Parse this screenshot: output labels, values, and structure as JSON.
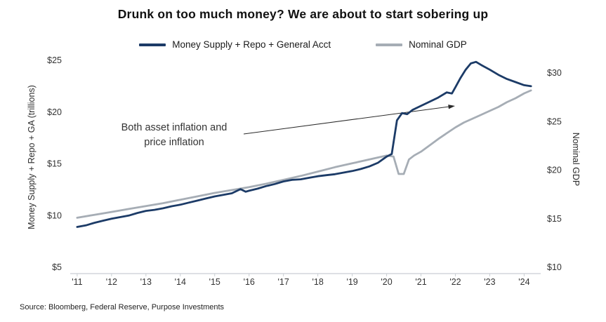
{
  "chart_data": {
    "type": "line",
    "title": "Drunk on too much money? We are about to start sobering up",
    "source": "Source: Bloomberg, Federal Reserve, Purpose Investments",
    "annotation": "Both asset inflation and price inflation",
    "legend_position": "top-center",
    "grid": false,
    "x_axis": {
      "tick_values": [
        2011,
        2012,
        2013,
        2014,
        2015,
        2016,
        2017,
        2018,
        2019,
        2020,
        2021,
        2022,
        2023,
        2024
      ],
      "tick_labels": [
        "'11",
        "'12",
        "'13",
        "'14",
        "'15",
        "'16",
        "'17",
        "'18",
        "'19",
        "'20",
        "'21",
        "'22",
        "'23",
        "'24"
      ],
      "range": [
        2010.9,
        2024.4
      ]
    },
    "left_axis": {
      "label": "Money Supply + Repo + GA (trillions)",
      "tick_values": [
        5,
        10,
        15,
        20,
        25
      ],
      "tick_labels": [
        "$5",
        "$10",
        "$15",
        "$20",
        "$25"
      ],
      "range": [
        5,
        25
      ]
    },
    "right_axis": {
      "label": "Nominal GDP",
      "tick_values": [
        10,
        15,
        20,
        25,
        30
      ],
      "tick_labels": [
        "$10",
        "$15",
        "$20",
        "$25",
        "$30"
      ],
      "range": [
        10,
        30
      ]
    },
    "series": [
      {
        "id": "money-supply",
        "name": "Money Supply + Repo + General Acct",
        "axis": "left",
        "color": "#1c3b67",
        "stroke_width": 2.8,
        "x": [
          2011.0,
          2011.25,
          2011.5,
          2011.75,
          2012.0,
          2012.25,
          2012.5,
          2012.75,
          2013.0,
          2013.25,
          2013.5,
          2013.75,
          2014.0,
          2014.25,
          2014.5,
          2014.75,
          2015.0,
          2015.25,
          2015.5,
          2015.75,
          2015.9,
          2016.0,
          2016.25,
          2016.5,
          2016.75,
          2017.0,
          2017.25,
          2017.5,
          2017.75,
          2018.0,
          2018.25,
          2018.5,
          2018.75,
          2019.0,
          2019.25,
          2019.5,
          2019.75,
          2020.0,
          2020.15,
          2020.3,
          2020.45,
          2020.6,
          2020.75,
          2021.0,
          2021.25,
          2021.5,
          2021.75,
          2021.9,
          2022.0,
          2022.15,
          2022.3,
          2022.45,
          2022.6,
          2022.75,
          2023.0,
          2023.25,
          2023.5,
          2023.75,
          2024.0,
          2024.2
        ],
        "y": [
          8.9,
          9.05,
          9.3,
          9.5,
          9.7,
          9.85,
          10.0,
          10.25,
          10.45,
          10.55,
          10.7,
          10.9,
          11.05,
          11.25,
          11.45,
          11.65,
          11.85,
          12.0,
          12.15,
          12.55,
          12.3,
          12.4,
          12.6,
          12.85,
          13.05,
          13.3,
          13.45,
          13.5,
          13.65,
          13.8,
          13.9,
          14.0,
          14.15,
          14.3,
          14.5,
          14.75,
          15.1,
          15.7,
          15.95,
          19.2,
          19.9,
          19.8,
          20.2,
          20.6,
          21.0,
          21.4,
          21.9,
          21.8,
          22.4,
          23.3,
          24.1,
          24.7,
          24.85,
          24.55,
          24.1,
          23.6,
          23.2,
          22.9,
          22.6,
          22.5
        ]
      },
      {
        "id": "nominal-gdp",
        "name": "Nominal GDP",
        "axis": "right",
        "color": "#a6adb5",
        "stroke_width": 2.8,
        "x": [
          2011.0,
          2011.5,
          2012.0,
          2012.5,
          2013.0,
          2013.5,
          2014.0,
          2014.5,
          2015.0,
          2015.5,
          2016.0,
          2016.5,
          2017.0,
          2017.5,
          2018.0,
          2018.5,
          2019.0,
          2019.5,
          2019.75,
          2020.0,
          2020.2,
          2020.35,
          2020.5,
          2020.65,
          2020.8,
          2021.0,
          2021.25,
          2021.5,
          2021.75,
          2022.0,
          2022.25,
          2022.5,
          2022.75,
          2023.0,
          2023.25,
          2023.5,
          2023.75,
          2024.0,
          2024.2
        ],
        "y": [
          15.1,
          15.4,
          15.7,
          16.0,
          16.3,
          16.6,
          16.95,
          17.3,
          17.65,
          17.95,
          18.25,
          18.6,
          19.0,
          19.4,
          19.85,
          20.3,
          20.7,
          21.1,
          21.3,
          21.5,
          21.4,
          19.6,
          19.6,
          21.1,
          21.5,
          21.9,
          22.55,
          23.2,
          23.8,
          24.4,
          24.9,
          25.3,
          25.7,
          26.1,
          26.5,
          27.0,
          27.4,
          27.9,
          28.2
        ]
      }
    ]
  }
}
